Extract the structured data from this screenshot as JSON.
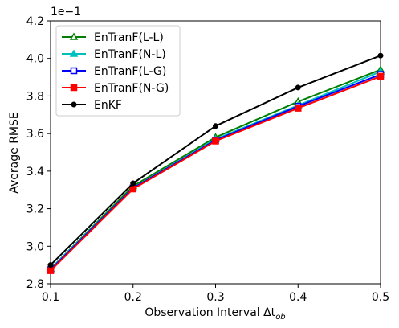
{
  "chart_data": {
    "type": "line",
    "title": "",
    "xlabel": "Observation Interval Δt",
    "xlabel_subscript": "ob",
    "ylabel": "Average RMSE",
    "y_scale_label": "1e−1",
    "xlim": [
      0.1,
      0.5
    ],
    "ylim": [
      2.8,
      4.2
    ],
    "x_ticks": [
      "0.1",
      "0.2",
      "0.3",
      "0.4",
      "0.5"
    ],
    "y_ticks": [
      "2.8",
      "3.0",
      "3.2",
      "3.4",
      "3.6",
      "3.8",
      "4.0",
      "4.2"
    ],
    "x": [
      0.1,
      0.2,
      0.3,
      0.4,
      0.5
    ],
    "legend_position": "top-left",
    "grid": false,
    "series": [
      {
        "name": "EnTranF(L-L)",
        "color": "#008000",
        "marker": "triangle-open",
        "values": [
          2.88,
          3.32,
          3.58,
          3.77,
          3.94
        ]
      },
      {
        "name": "EnTranF(N-L)",
        "color": "#00bfbf",
        "marker": "triangle-filled",
        "values": [
          2.88,
          3.31,
          3.57,
          3.75,
          3.93
        ]
      },
      {
        "name": "EnTranF(L-G)",
        "color": "#0000ff",
        "marker": "square-open",
        "values": [
          2.875,
          3.31,
          3.565,
          3.745,
          3.915
        ]
      },
      {
        "name": "EnTranF(N-G)",
        "color": "#ff0000",
        "marker": "square-filled",
        "values": [
          2.87,
          3.305,
          3.56,
          3.735,
          3.905
        ]
      },
      {
        "name": "EnKF",
        "color": "#000000",
        "marker": "circle-filled",
        "values": [
          2.9,
          3.335,
          3.64,
          3.845,
          4.015
        ]
      }
    ]
  }
}
